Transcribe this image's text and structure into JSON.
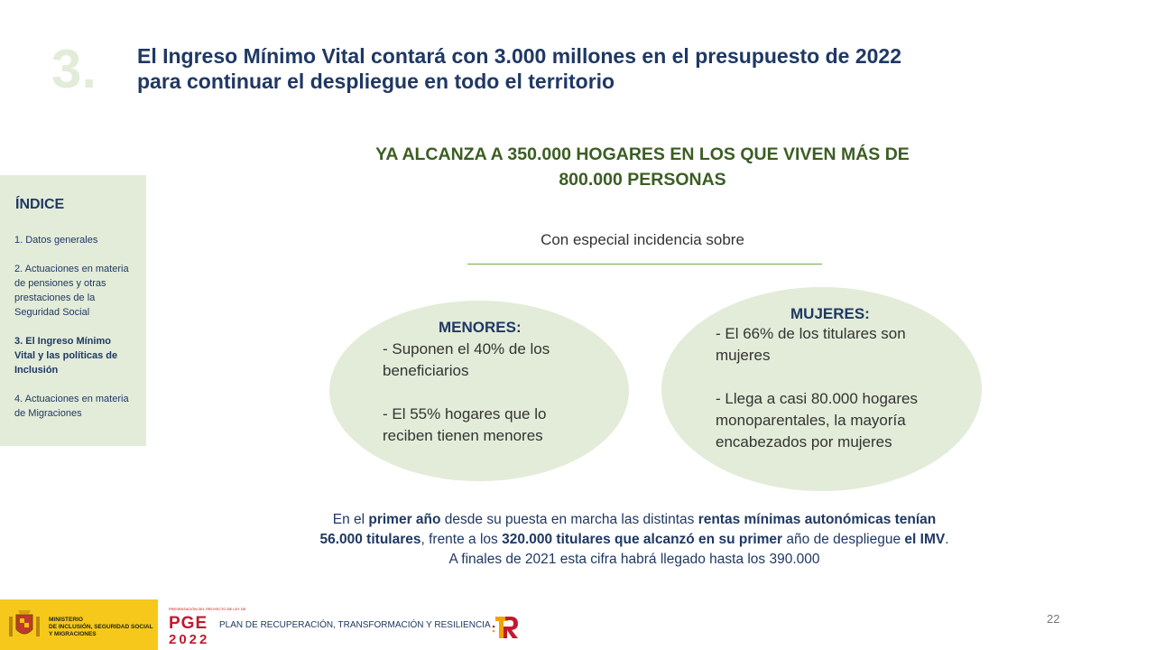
{
  "header": {
    "section_number": "3.",
    "title_lines": [
      "El Ingreso Mínimo Vital contará con 3.000 millones en el presupuesto de 2022",
      "para continuar el despliegue en todo el territorio"
    ]
  },
  "index": {
    "heading": "ÍNDICE",
    "items": [
      "1. Datos generales",
      "2. Actuaciones en materia de pensiones y otras prestaciones de la Seguridad Social",
      "3. El Ingreso Mínimo Vital y las políticas de Inclusión",
      "4. Actuaciones en materia de Migraciones"
    ]
  },
  "headline_lines": [
    "YA ALCANZA A 350.000 HOGARES EN LOS QUE VIVEN MÁS DE",
    "800.000 PERSONAS"
  ],
  "subhead": "Con especial incidencia sobre",
  "menores": {
    "title": "MENORES:",
    "lines": [
      "- Suponen el 40% de los",
      "beneficiarios",
      "",
      "- El 55% hogares que lo",
      "reciben tienen menores"
    ]
  },
  "mujeres": {
    "title": "MUJERES:",
    "lines": [
      "- El 66% de los titulares son",
      "mujeres",
      "",
      "- Llega a casi 80.000 hogares",
      "monoparentales, la mayoría",
      "encabezados por mujeres"
    ]
  },
  "footnote": {
    "l1_a": "En el ",
    "l1_b": "primer año",
    "l1_c": " desde su puesta en marcha las distintas ",
    "l1_d": "rentas mínimas autonómicas tenían",
    "l2_a": "56.000 titulares",
    "l2_b": ", frente a los ",
    "l2_c": "320.000 titulares que alcanzó en su primer",
    "l2_d": " año de despliegue ",
    "l2_e": "el IMV",
    "l2_f": ".",
    "l3": "A finales de 2021 esta cifra habrá llegado hasta los 390.000"
  },
  "footer": {
    "ministry_lines": [
      "MINISTERIO",
      "DE INCLUSIÓN, SEGURIDAD SOCIAL",
      "Y MIGRACIONES"
    ],
    "pge_small": "PRESENTACIÓN DEL PROYECTO DE LEY DE",
    "pge_word": "PGE",
    "pge_year": "2022",
    "plan_text": "PLAN DE RECUPERACIÓN, TRANSFORMACIÓN Y RESILIENCIA",
    "page_number": "22"
  },
  "colors": {
    "title": "#1f3864",
    "headline": "#3b5e23",
    "panel": "#e3ecd9",
    "ministry_yellow": "#f6c81b",
    "pge_red": "#c2192e"
  }
}
